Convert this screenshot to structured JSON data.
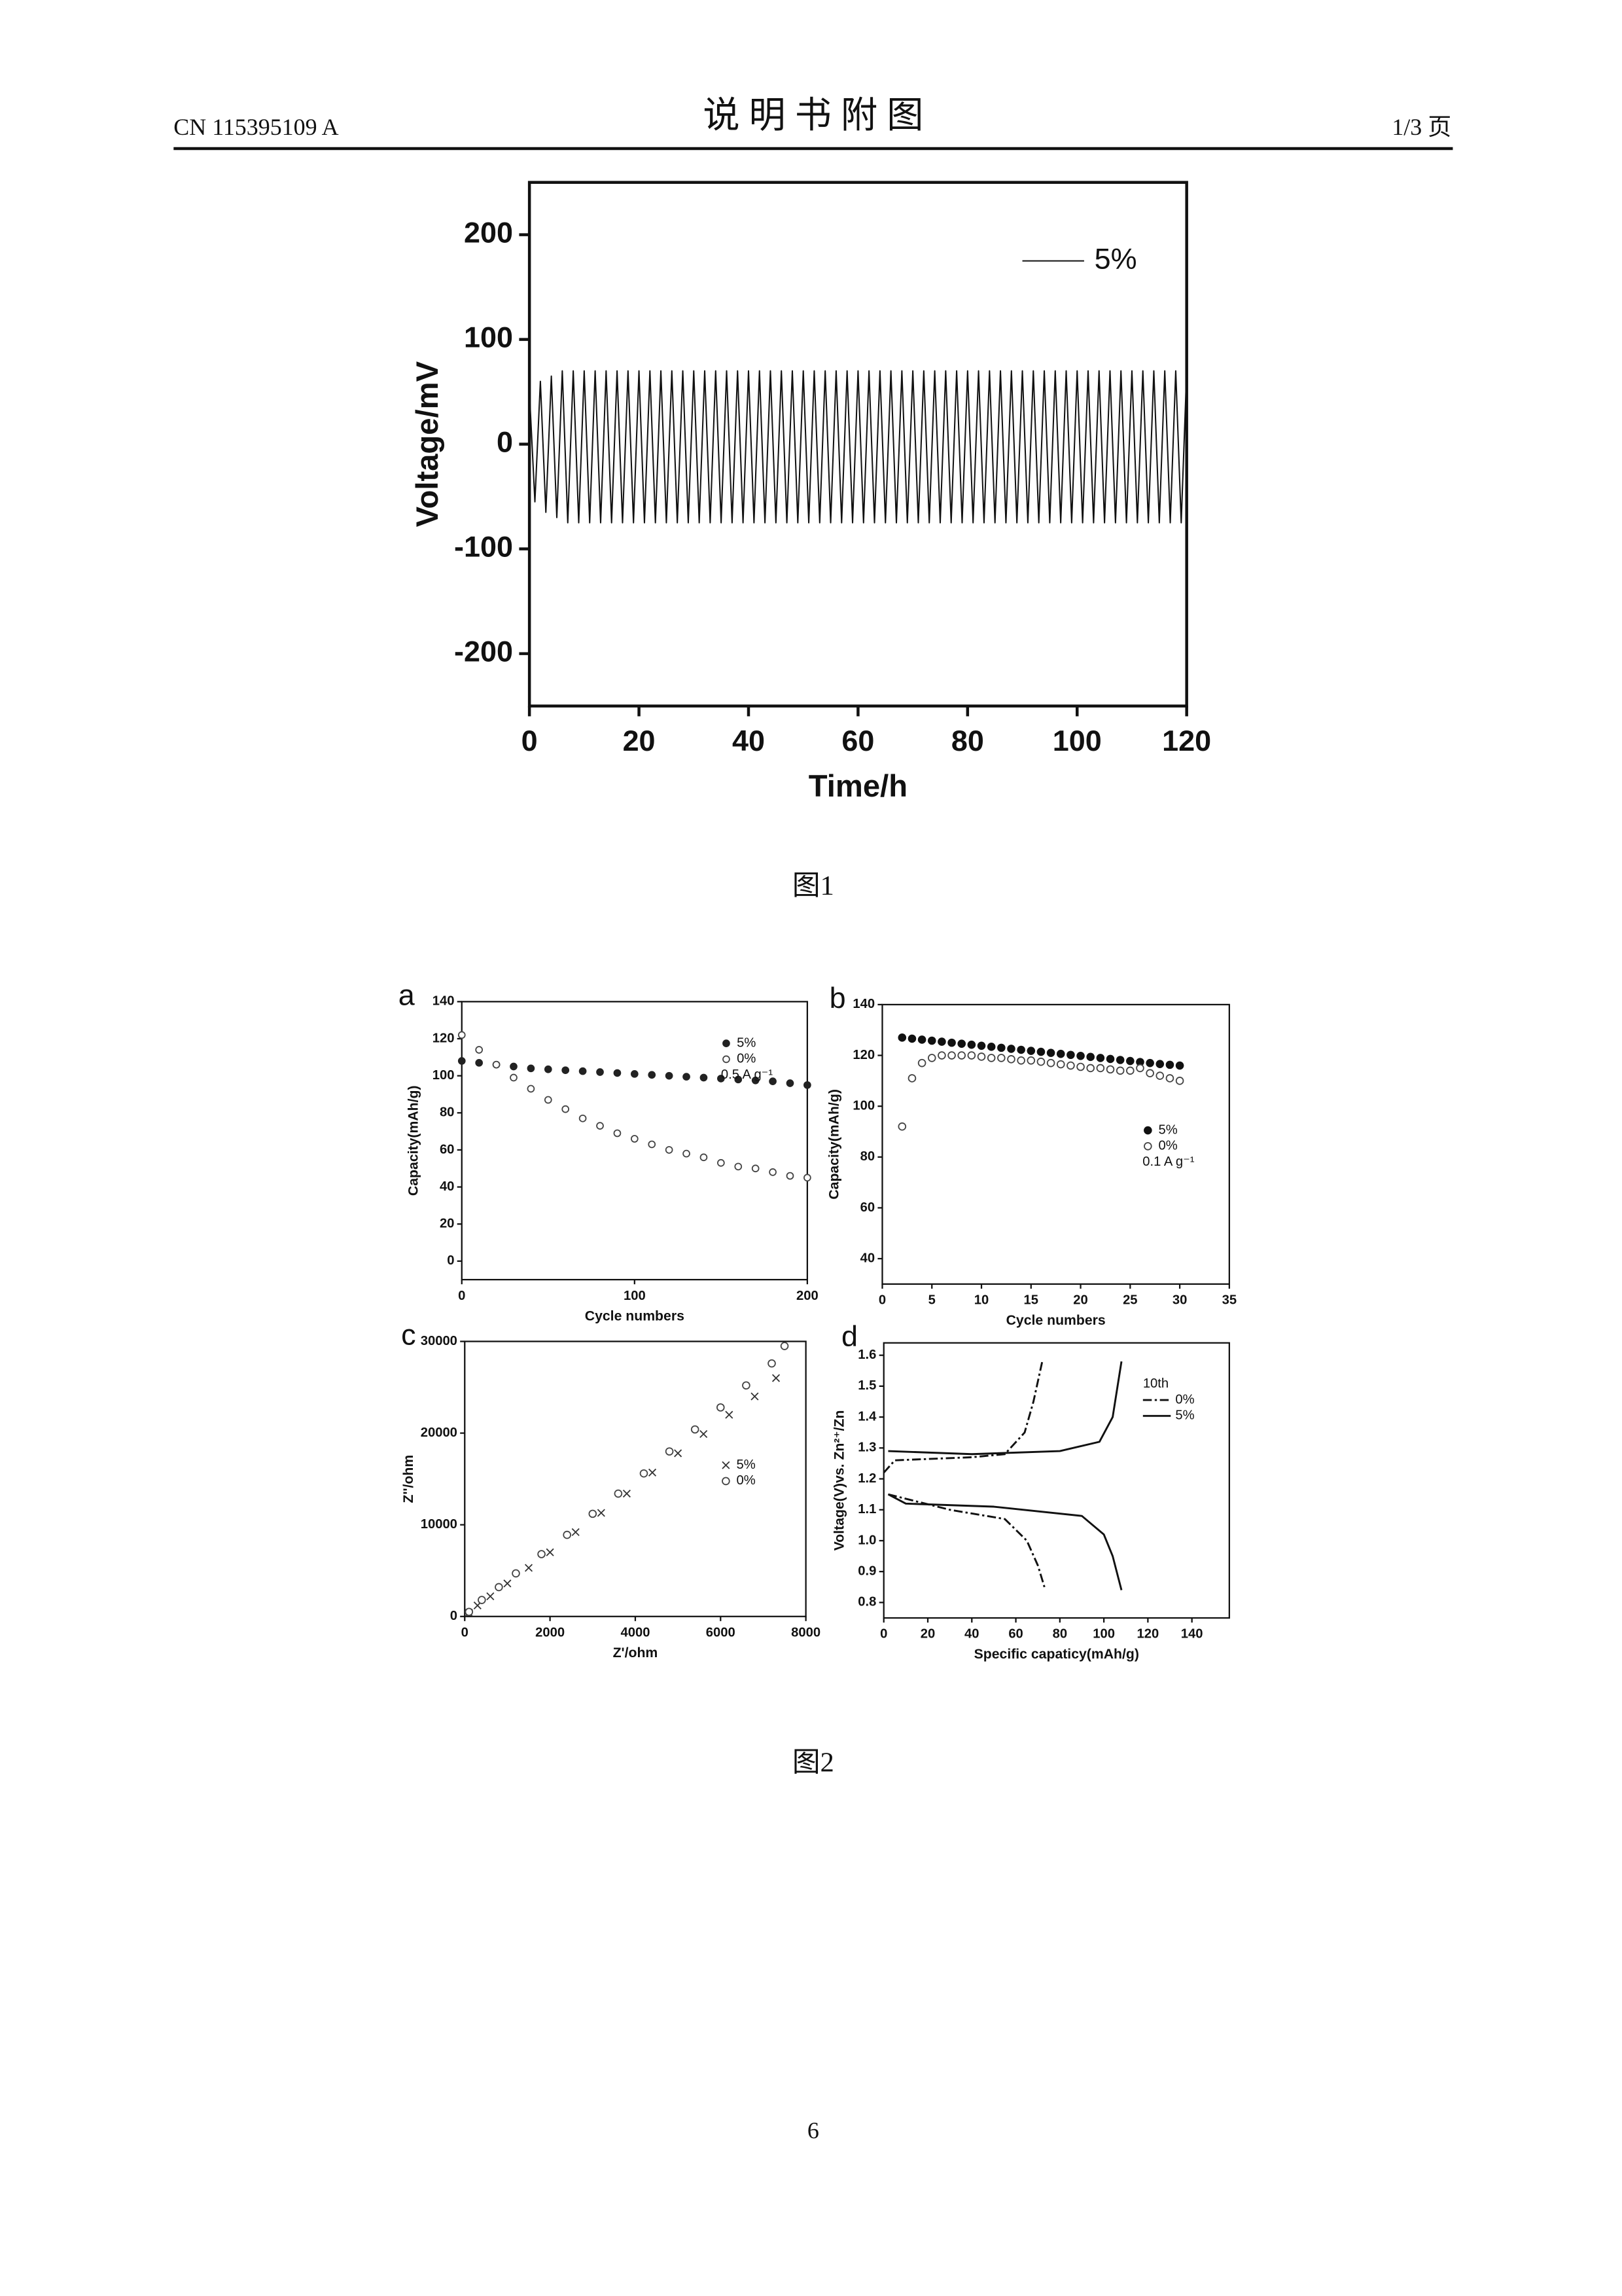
{
  "header": {
    "left": "CN 115395109 A",
    "title": "说 明 书 附 图",
    "right": "1/3 页"
  },
  "figure_1": {
    "chart": {
      "type": "line",
      "y_label": "Voltage/mV",
      "x_label": "Time/h",
      "xlim": [
        0,
        120
      ],
      "xticks": [
        0,
        20,
        40,
        60,
        80,
        100,
        120
      ],
      "ylim": [
        -250,
        250
      ],
      "yticks": [
        -200,
        -100,
        0,
        100,
        200
      ],
      "legend": "upper right",
      "x": [
        0,
        1,
        2,
        3,
        4,
        5,
        6,
        7,
        8,
        9,
        10,
        11,
        12,
        13,
        14,
        15,
        16,
        17,
        18,
        19,
        20,
        21,
        22,
        23,
        24,
        25,
        26,
        27,
        28,
        29,
        30,
        31,
        32,
        33,
        34,
        35,
        36,
        37,
        38,
        39,
        40,
        41,
        42,
        43,
        44,
        45,
        46,
        47,
        48,
        49,
        50,
        51,
        52,
        53,
        54,
        55,
        56,
        57,
        58,
        59,
        60,
        61,
        62,
        63,
        64,
        65,
        66,
        67,
        68,
        69,
        70,
        71,
        72,
        73,
        74,
        75,
        76,
        77,
        78,
        79,
        80,
        81,
        82,
        83,
        84,
        85,
        86,
        87,
        88,
        89,
        90,
        91,
        92,
        93,
        94,
        95,
        96,
        97,
        98,
        99,
        100,
        101,
        102,
        103,
        104,
        105,
        106,
        107,
        108,
        109,
        110,
        111,
        112,
        113,
        114,
        115,
        116,
        117,
        118,
        119,
        120
      ],
      "series": [
        {
          "name": "5%",
          "color": "#111111",
          "values": [
            50,
            -55,
            60,
            -65,
            65,
            -70,
            70,
            -75,
            70,
            -75,
            70,
            -75,
            70,
            -75,
            70,
            -75,
            70,
            -75,
            70,
            -75,
            70,
            -75,
            70,
            -75,
            70,
            -75,
            70,
            -75,
            70,
            -75,
            70,
            -75,
            70,
            -75,
            70,
            -75,
            70,
            -75,
            70,
            -75,
            70,
            -75,
            70,
            -75,
            70,
            -75,
            70,
            -75,
            70,
            -75,
            70,
            -75,
            70,
            -75,
            70,
            -75,
            70,
            -75,
            70,
            -75,
            70,
            -75,
            70,
            -75,
            70,
            -75,
            70,
            -75,
            70,
            -75,
            70,
            -75,
            70,
            -75,
            70,
            -75,
            70,
            -75,
            70,
            -75,
            70,
            -75,
            70,
            -75,
            70,
            -75,
            70,
            -75,
            70,
            -75,
            70,
            -75,
            70,
            -75,
            70,
            -75,
            70,
            -75,
            70,
            -75,
            70,
            -75,
            70,
            -75,
            70,
            -75,
            70,
            -75,
            70,
            -75,
            70,
            -75,
            70,
            -75,
            70,
            -75,
            70,
            -75,
            70,
            -75,
            70
          ]
        }
      ]
    },
    "caption": "图1"
  },
  "figure_2": {
    "panels": [
      {
        "type": "scatter",
        "panel_label": "a",
        "y_label": "Capacity(mAh/g)",
        "x_label": "Cycle numbers",
        "xlim": [
          0,
          200
        ],
        "xticks": [
          0,
          100,
          200
        ],
        "ylim": [
          -10,
          140
        ],
        "yticks": [
          0,
          20,
          40,
          60,
          80,
          100,
          120,
          140
        ],
        "legend": "upper right",
        "legend_note": "0.5 A g⁻¹",
        "x": [
          0,
          10,
          20,
          30,
          40,
          50,
          60,
          70,
          80,
          90,
          100,
          110,
          120,
          130,
          140,
          150,
          160,
          170,
          180,
          190,
          200
        ],
        "series": [
          {
            "name": "5%",
            "color": "#222222",
            "marker": "filled",
            "values": [
              108,
              107,
              106,
              105,
              104,
              103.5,
              103,
              102.5,
              102,
              101.5,
              101,
              100.5,
              100,
              99.5,
              99,
              98.5,
              98,
              97.5,
              97,
              96,
              95
            ]
          },
          {
            "name": "0%",
            "color": "#444444",
            "marker": "open",
            "values": [
              122,
              114,
              106,
              99,
              93,
              87,
              82,
              77,
              73,
              69,
              66,
              63,
              60,
              58,
              56,
              53,
              51,
              50,
              48,
              46,
              45
            ]
          }
        ]
      },
      {
        "type": "scatter",
        "panel_label": "b",
        "y_label": "Capacity(mAh/g)",
        "x_label": "Cycle numbers",
        "xlim": [
          0,
          35
        ],
        "xticks": [
          0,
          5,
          10,
          15,
          20,
          25,
          30,
          35
        ],
        "ylim": [
          30,
          140
        ],
        "yticks": [
          40,
          60,
          80,
          100,
          120,
          140
        ],
        "legend": "center right",
        "legend_note": "0.1 A g⁻¹",
        "x": [
          2,
          3,
          4,
          5,
          6,
          7,
          8,
          9,
          10,
          11,
          12,
          13,
          14,
          15,
          16,
          17,
          18,
          19,
          20,
          21,
          22,
          23,
          24,
          25,
          26,
          27,
          28,
          29,
          30
        ],
        "series": [
          {
            "name": "5%",
            "color": "#111111",
            "marker": "filled",
            "values": [
              127,
              126.6,
              126.2,
              125.8,
              125.4,
              125,
              124.6,
              124.2,
              123.8,
              123.4,
              123,
              122.6,
              122.2,
              121.8,
              121.4,
              121,
              120.6,
              120.2,
              119.8,
              119.4,
              119,
              118.6,
              118.2,
              117.8,
              117.4,
              117,
              116.6,
              116.3,
              116
            ]
          },
          {
            "name": "0%",
            "color": "#444444",
            "marker": "open",
            "values": [
              92,
              111,
              117,
              119,
              120,
              120,
              120,
              120,
              119.5,
              119,
              119,
              118.5,
              118,
              118,
              117.5,
              117,
              116.5,
              116,
              115.5,
              115,
              115,
              114.5,
              114,
              114,
              115,
              113,
              112,
              111,
              110
            ]
          }
        ]
      },
      {
        "type": "scatter",
        "panel_label": "c",
        "y_label": "Z''/ohm",
        "x_label": "Z'/ohm",
        "xlim": [
          0,
          8000
        ],
        "xticks": [
          0,
          2000,
          4000,
          6000,
          8000
        ],
        "ylim": [
          0,
          30000
        ],
        "yticks": [
          0,
          10000,
          20000,
          30000
        ],
        "legend": "center right",
        "series": [
          {
            "name": "5%",
            "color": "#333333",
            "marker": "cross",
            "x": [
              100,
              300,
              600,
              1000,
              1500,
              2000,
              2600,
              3200,
              3800,
              4400,
              5000,
              5600,
              6200,
              6800,
              7300
            ],
            "values": [
              400,
              1200,
              2200,
              3600,
              5300,
              7000,
              9200,
              11300,
              13400,
              15700,
              17800,
              19900,
              22000,
              24000,
              26000
            ]
          },
          {
            "name": "0%",
            "color": "#444444",
            "marker": "open",
            "x": [
              100,
              400,
              800,
              1200,
              1800,
              2400,
              3000,
              3600,
              4200,
              4800,
              5400,
              6000,
              6600,
              7200,
              7500
            ],
            "values": [
              500,
              1800,
              3200,
              4700,
              6800,
              8900,
              11200,
              13400,
              15600,
              18000,
              20400,
              22800,
              25200,
              27600,
              29500
            ]
          }
        ]
      },
      {
        "type": "line",
        "panel_label": "d",
        "y_label": "Voltage(V)vs. Zn²⁺/Zn",
        "x_label": "Specific capaticy(mAh/g)",
        "xlim": [
          0,
          157
        ],
        "xticks": [
          0,
          20,
          40,
          60,
          80,
          100,
          120,
          140
        ],
        "ylim": [
          0.75,
          1.64
        ],
        "yticks": [
          0.8,
          0.9,
          {
            "value": 1,
            "label": "1.0"
          },
          1.1,
          1.2,
          1.3,
          1.4,
          1.5,
          1.6
        ],
        "legend": "upper right",
        "legend_title": "10th",
        "series": [
          {
            "name": "0%",
            "color": "#111111",
            "dash": "dash-dot",
            "x": [
              2,
              30,
              55,
              65,
              70,
              73,
              null,
              0,
              5,
              40,
              55,
              64,
              68,
              72
            ],
            "values": [
              1.15,
              1.1,
              1.07,
              1.0,
              0.92,
              0.85,
              null,
              1.22,
              1.26,
              1.27,
              1.28,
              1.35,
              1.45,
              1.58
            ]
          },
          {
            "name": "5%",
            "color": "#111111",
            "dash": "solid",
            "x": [
              2,
              10,
              50,
              90,
              100,
              104,
              108,
              null,
              2,
              40,
              80,
              98,
              104,
              108
            ],
            "values": [
              1.15,
              1.12,
              1.11,
              1.08,
              1.02,
              0.95,
              0.84,
              null,
              1.29,
              1.28,
              1.29,
              1.32,
              1.4,
              1.58
            ]
          }
        ]
      }
    ],
    "caption": "图2"
  },
  "page_number": "6"
}
